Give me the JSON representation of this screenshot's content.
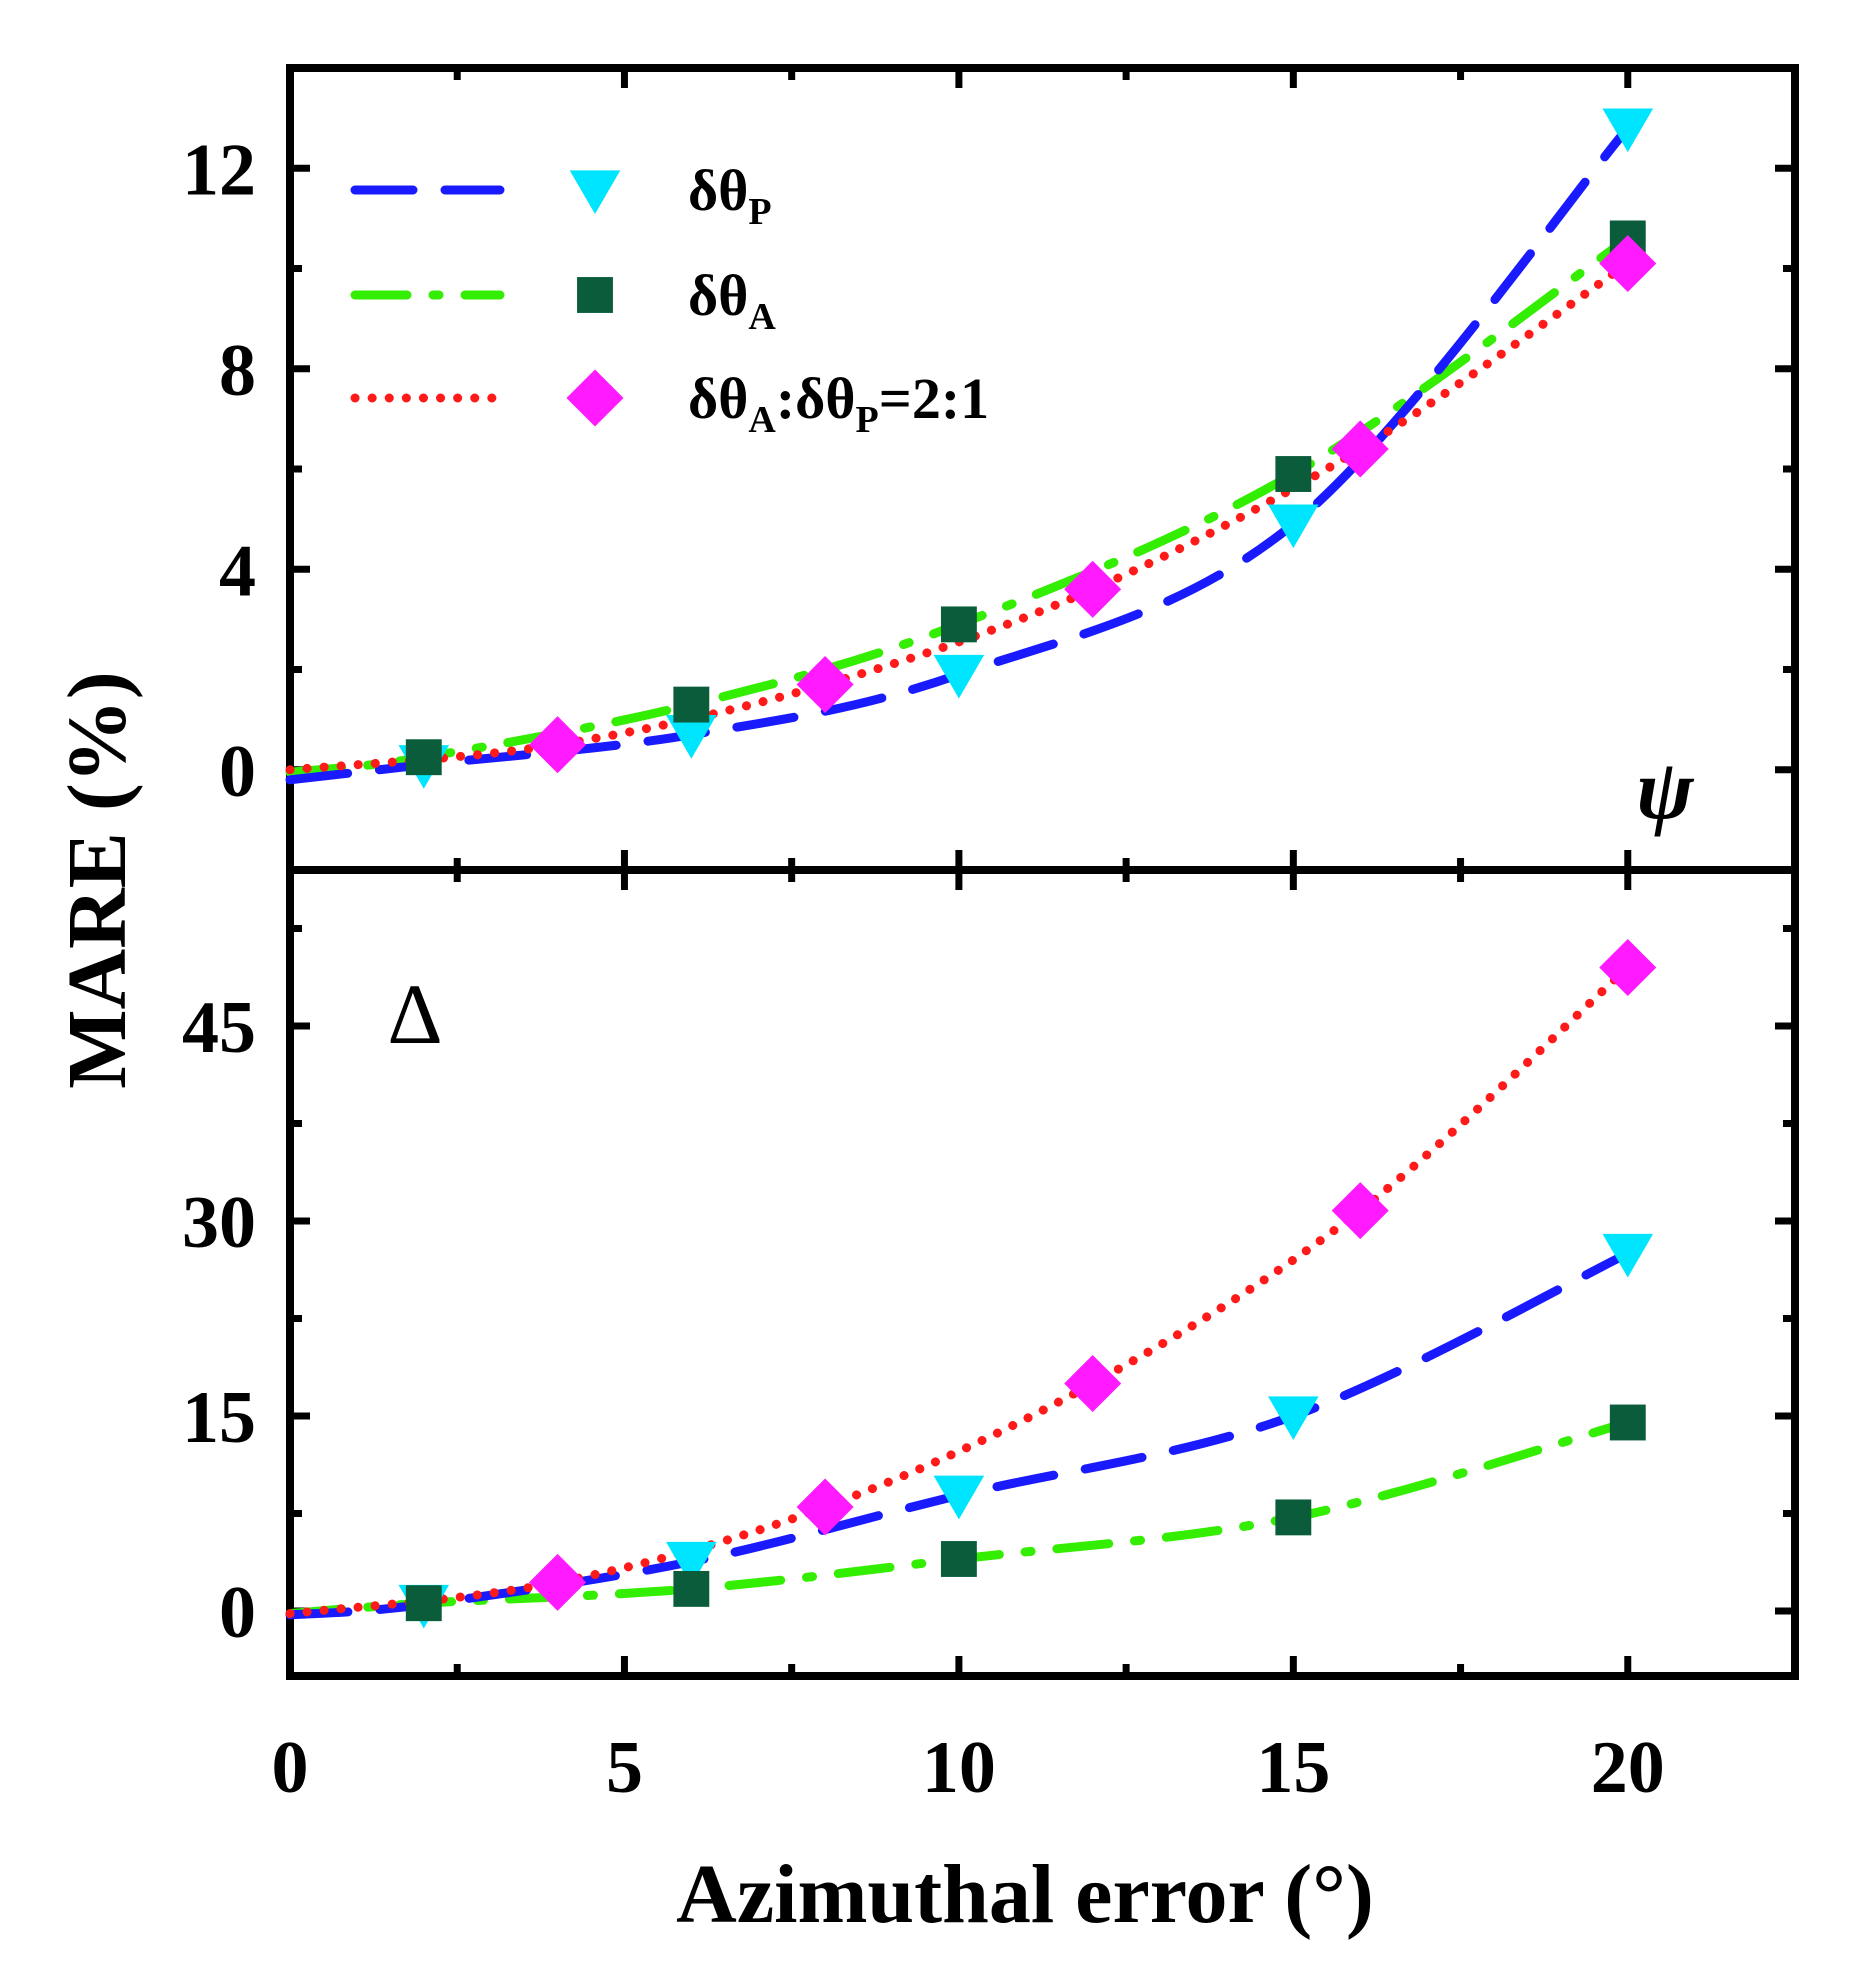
{
  "chart_data": {
    "type": "line",
    "xlabel": "Azimuthal error (°)",
    "ylabel": "MARE (%)",
    "xlim": [
      0,
      22.5
    ],
    "xticks": [
      "0",
      "5",
      "10",
      "15",
      "20"
    ],
    "legend_position": "top-left",
    "legend": [
      {
        "series_key": "dtp",
        "label": "δθ",
        "sub": "P",
        "line_style": "dashed",
        "line_color": "#1a1aff",
        "marker": "triangle-down",
        "marker_color": "#00e5ff"
      },
      {
        "series_key": "dta",
        "label": "δθ",
        "sub": "A",
        "line_style": "dash-dot",
        "line_color": "#33ee00",
        "marker": "square",
        "marker_color": "#0b5c3a"
      },
      {
        "series_key": "ratio",
        "label": "δθ",
        "sub": "A",
        "label2": ":δθ",
        "sub2": "P",
        "label3": "=2:1",
        "line_style": "dotted",
        "line_color": "#ff1a1a",
        "marker": "diamond",
        "marker_color": "#ff1aff"
      }
    ],
    "panels": [
      {
        "name": "psi",
        "tag": "ψ",
        "ylim": [
          -2,
          14
        ],
        "yticks": [
          "0",
          "4",
          "8",
          "12"
        ],
        "series": {
          "dtp": {
            "x": [
              0,
              2,
              6,
              10,
              15,
              20
            ],
            "y": [
              -0.2,
              0.1,
              0.7,
              1.9,
              4.9,
              12.8
            ]
          },
          "dta": {
            "x": [
              0,
              2,
              6,
              10,
              15,
              20
            ],
            "y": [
              -0.05,
              0.25,
              1.3,
              2.9,
              5.9,
              10.6
            ]
          },
          "ratio": {
            "x": [
              0,
              4,
              8,
              12,
              16,
              20
            ],
            "y": [
              0.0,
              0.5,
              1.7,
              3.6,
              6.4,
              10.1
            ]
          }
        }
      },
      {
        "name": "delta",
        "tag": "Δ",
        "ylim": [
          -5,
          57
        ],
        "yticks": [
          "0",
          "15",
          "30",
          "45"
        ],
        "series": {
          "dtp": {
            "x": [
              0,
              2,
              6,
              10,
              15,
              20
            ],
            "y": [
              -0.3,
              0.5,
              3.8,
              8.9,
              15.0,
              27.5
            ]
          },
          "dta": {
            "x": [
              0,
              2,
              6,
              10,
              15,
              20
            ],
            "y": [
              -0.2,
              0.6,
              1.7,
              4.0,
              7.2,
              14.5
            ]
          },
          "ratio": {
            "x": [
              0,
              4,
              8,
              12,
              16,
              20
            ],
            "y": [
              -0.2,
              2.2,
              8.0,
              17.5,
              30.8,
              49.5
            ]
          }
        }
      }
    ]
  }
}
